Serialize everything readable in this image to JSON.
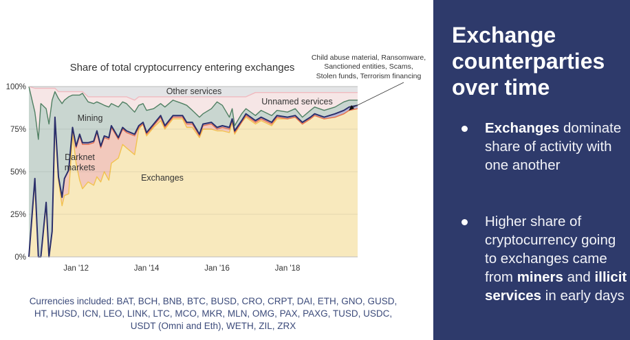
{
  "panel": {
    "title": "Exchange counterparties over time",
    "bullets": [
      {
        "bold": "Exchanges",
        "text": " dominate share of activity with one another"
      },
      {
        "t1": "Higher share of cryptocurrency going to exchanges came from ",
        "b1": "miners",
        "t2": " and ",
        "b2": "illicit services",
        "t3": " in early days"
      }
    ],
    "bg_color": "#2e3a6b"
  },
  "currencies_note": "Currencies included: BAT, BCH, BNB, BTC, BUSD, CRO, CRPT, DAI, ETH, GNO, GUSD, HT, HUSD, ICN, LEO, LINK, LTC, MCO, MKR, MLN, OMG, PAX, PAXG, TUSD, USDC, USDT (Omni and Eth), WETH, ZIL, ZRX",
  "chart_data": {
    "type": "area",
    "stacked": true,
    "title": "Share of total cryptocurrency entering exchanges",
    "xlabel": "",
    "ylabel": "",
    "ylim": [
      0,
      100
    ],
    "xlim": [
      2010.66,
      2019.99
    ],
    "y_ticks": [
      {
        "v": 0,
        "label": "0%"
      },
      {
        "v": 25,
        "label": "25%"
      },
      {
        "v": 50,
        "label": "50%"
      },
      {
        "v": 75,
        "label": "75%"
      },
      {
        "v": 100,
        "label": "100%"
      }
    ],
    "x_ticks": [
      {
        "v": 2012,
        "label": "Jan '12"
      },
      {
        "v": 2014,
        "label": "Jan '14"
      },
      {
        "v": 2016,
        "label": "Jan '16"
      },
      {
        "v": 2018,
        "label": "Jan '18"
      }
    ],
    "grid": true,
    "labels": {
      "other": "Other services",
      "unnamed": "Unnamed services",
      "mining": "Mining",
      "darknet_1": "Darknet",
      "darknet_2": "markets",
      "exchanges": "Exchanges",
      "illicit_1": "Child abuse material, Ransomware,",
      "illicit_2": "Sanctioned entities, Scams,",
      "illicit_3": "Stolen funds, Terrorism financing"
    },
    "x": [
      2010.66,
      2010.83,
      2010.93,
      2011.0,
      2011.15,
      2011.23,
      2011.32,
      2011.4,
      2011.5,
      2011.6,
      2011.67,
      2011.79,
      2011.9,
      2012.0,
      2012.1,
      2012.18,
      2012.34,
      2012.5,
      2012.59,
      2012.7,
      2012.8,
      2012.93,
      2013.0,
      2013.2,
      2013.32,
      2013.43,
      2013.66,
      2013.78,
      2013.9,
      2014.0,
      2014.2,
      2014.4,
      2014.52,
      2014.75,
      2015.02,
      2015.14,
      2015.3,
      2015.5,
      2015.6,
      2015.84,
      2016.0,
      2016.15,
      2016.35,
      2016.43,
      2016.5,
      2016.7,
      2016.82,
      2017.09,
      2017.25,
      2017.55,
      2017.7,
      2018.0,
      2018.22,
      2018.42,
      2018.65,
      2018.77,
      2019.04,
      2019.35,
      2019.6,
      2019.75,
      2019.99
    ],
    "series": [
      {
        "name": "Exchanges",
        "fill": "#f8e9bd",
        "line": "#f2c24f",
        "values": [
          0,
          46,
          0,
          0,
          32,
          0,
          15,
          82,
          45,
          30,
          36,
          37,
          72,
          55,
          45,
          40,
          44,
          42,
          47,
          44,
          50,
          45,
          55,
          58,
          66,
          64,
          60,
          75,
          78,
          71,
          76,
          80,
          75,
          81,
          81,
          76,
          76,
          70,
          75,
          75,
          74,
          74,
          73,
          79,
          72,
          79,
          82,
          78,
          80,
          77,
          81,
          81,
          82,
          78,
          81,
          83,
          81,
          82,
          84,
          86,
          87
        ]
      },
      {
        "name": "Darknet markets",
        "fill": "#f2c9bd",
        "line": "#e8704e",
        "values": [
          0,
          0,
          0,
          0,
          0,
          0,
          0,
          0,
          2,
          5,
          10,
          14,
          3,
          9,
          26,
          26,
          22,
          25,
          26,
          20,
          20,
          24,
          21,
          11,
          9,
          9,
          11,
          1,
          0,
          1,
          1,
          2,
          1,
          1,
          1,
          2,
          2,
          1,
          2,
          3,
          1,
          2,
          2,
          1,
          1,
          0,
          1,
          1,
          1,
          1,
          1,
          0,
          0,
          0,
          0,
          0,
          0,
          0,
          0,
          0,
          0
        ]
      },
      {
        "name": "Child abuse material, Ransomware, Sanctioned entities, Scams, Stolen funds, Terrorism financing",
        "fill": "#b9b6d6",
        "line": "#2b2f6b",
        "values": [
          0,
          0,
          0,
          0,
          0,
          0,
          0,
          0,
          0,
          0,
          0,
          0,
          1,
          1,
          1,
          1,
          1,
          1,
          1,
          1,
          1,
          1,
          1,
          1,
          1,
          1,
          1,
          1,
          1,
          1,
          1,
          1,
          1,
          1,
          1,
          1,
          1,
          1,
          1,
          1,
          1,
          1,
          1,
          1,
          1,
          1,
          1,
          1,
          1,
          1,
          1,
          1,
          1,
          1,
          1,
          1,
          1,
          2,
          2,
          2,
          2
        ]
      },
      {
        "name": "Mining",
        "fill": "#c9d6d0",
        "line": "#4f7f62",
        "values": [
          100,
          39,
          69,
          90,
          55,
          78,
          77,
          15,
          46,
          55,
          46,
          43,
          19,
          30,
          23,
          29,
          24,
          22,
          17,
          25,
          18,
          18,
          13,
          18,
          15,
          16,
          13,
          12,
          11,
          13,
          9,
          7,
          11,
          9,
          7,
          10,
          7,
          10,
          6,
          8,
          15,
          12,
          6,
          6,
          3,
          4,
          3,
          3,
          4,
          4,
          3,
          3,
          4,
          3,
          4,
          4,
          4,
          4,
          5,
          4,
          3
        ]
      },
      {
        "name": "Unnamed services",
        "fill": "#f6e6e6",
        "line": "#f0b9bf",
        "values": [
          0,
          14,
          30,
          9,
          12,
          21,
          7,
          2,
          4,
          7,
          5,
          3,
          2,
          2,
          2,
          1,
          3,
          4,
          3,
          4,
          5,
          6,
          4,
          6,
          3,
          4,
          7,
          5,
          4,
          8,
          7,
          4,
          6,
          2,
          4,
          5,
          8,
          12,
          10,
          7,
          3,
          5,
          12,
          7,
          17,
          10,
          7,
          13.5,
          10.5,
          13.5,
          10.5,
          11.5,
          9.5,
          14.5,
          10.5,
          8.5,
          10.5,
          8.5,
          5.5,
          4.5,
          4.5
        ]
      },
      {
        "name": "Other services",
        "fill": "#e3e4e6",
        "line": "#d0d1d4",
        "values": [
          0,
          1,
          1,
          1,
          1,
          1,
          1,
          1,
          3,
          3,
          3,
          3,
          3,
          3,
          3,
          3,
          6,
          6,
          6,
          6,
          6,
          6,
          6,
          6,
          6,
          6,
          8,
          6,
          6,
          6,
          6,
          6,
          6,
          6,
          6,
          6,
          6,
          6,
          6,
          6,
          6,
          6,
          6,
          6,
          6,
          6,
          6,
          3.5,
          3.5,
          3.5,
          3.5,
          3.5,
          3.5,
          3.5,
          3.5,
          3.5,
          3.5,
          3.5,
          3.5,
          3.5,
          3.5
        ]
      }
    ]
  }
}
